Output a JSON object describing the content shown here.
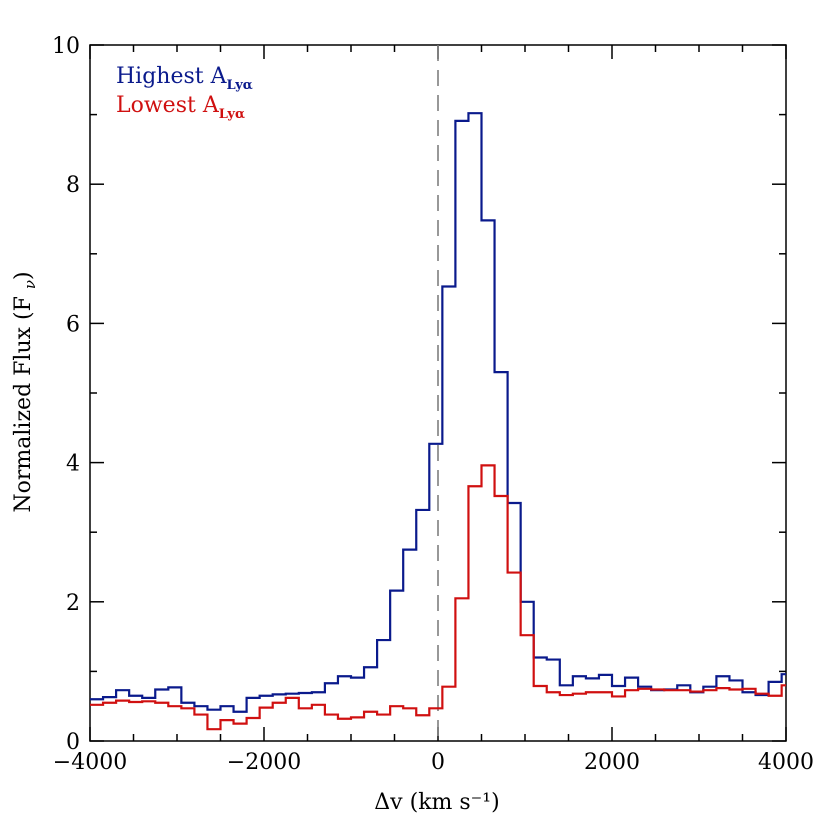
{
  "chart_data": {
    "type": "line",
    "drawstyle": "steps",
    "xlabel": "Δv (km s⁻¹)",
    "ylabel": "Normalized Flux (Fν)",
    "xlim": [
      -4000,
      4000
    ],
    "ylim": [
      0,
      10
    ],
    "x_ticks": [
      -4000,
      -2000,
      0,
      2000,
      4000
    ],
    "x_tick_labels": [
      "−4000",
      "−2000",
      "0",
      "2000",
      "4000"
    ],
    "y_ticks": [
      0,
      2,
      4,
      6,
      8,
      10
    ],
    "y_tick_labels": [
      "0",
      "2",
      "4",
      "6",
      "8",
      "10"
    ],
    "x_minor_step": 500,
    "y_minor_step": 1,
    "vline": {
      "x": 0,
      "style": "dashed",
      "color": "#7f7f7f"
    },
    "legend_position": "top-left",
    "series": [
      {
        "name": "Highest A_Lyα",
        "legend_main": "Highest A",
        "legend_sub": "Lyα",
        "color": "#0a1a8c",
        "x": [
          -4000,
          -3850,
          -3700,
          -3550,
          -3400,
          -3250,
          -3100,
          -2950,
          -2800,
          -2650,
          -2500,
          -2350,
          -2200,
          -2050,
          -1900,
          -1750,
          -1600,
          -1450,
          -1300,
          -1150,
          -1000,
          -850,
          -700,
          -550,
          -400,
          -250,
          -100,
          50,
          200,
          350,
          500,
          650,
          800,
          950,
          1100,
          1250,
          1400,
          1550,
          1700,
          1850,
          2000,
          2150,
          2300,
          2450,
          2600,
          2750,
          2900,
          3050,
          3200,
          3350,
          3500,
          3650,
          3800,
          3950
        ],
        "y": [
          0.6,
          0.63,
          0.73,
          0.65,
          0.62,
          0.74,
          0.77,
          0.55,
          0.5,
          0.45,
          0.5,
          0.42,
          0.62,
          0.65,
          0.67,
          0.68,
          0.69,
          0.7,
          0.83,
          0.93,
          0.91,
          1.06,
          1.45,
          2.16,
          2.75,
          3.32,
          4.27,
          6.53,
          8.91,
          9.02,
          7.48,
          5.3,
          3.42,
          2.0,
          1.2,
          1.17,
          0.8,
          0.93,
          0.9,
          0.95,
          0.79,
          0.91,
          0.78,
          0.73,
          0.74,
          0.8,
          0.7,
          0.78,
          0.93,
          0.87,
          0.7,
          0.66,
          0.85,
          0.96
        ]
      },
      {
        "name": "Lowest A_Lyα",
        "legend_main": "Lowest A",
        "legend_sub": "Lyα",
        "color": "#d01010",
        "x": [
          -4000,
          -3850,
          -3700,
          -3550,
          -3400,
          -3250,
          -3100,
          -2950,
          -2800,
          -2650,
          -2500,
          -2350,
          -2200,
          -2050,
          -1900,
          -1750,
          -1600,
          -1450,
          -1300,
          -1150,
          -1000,
          -850,
          -700,
          -550,
          -400,
          -250,
          -100,
          50,
          200,
          350,
          500,
          650,
          800,
          950,
          1100,
          1250,
          1400,
          1550,
          1700,
          1850,
          2000,
          2150,
          2300,
          2450,
          2600,
          2750,
          2900,
          3050,
          3200,
          3350,
          3500,
          3650,
          3800,
          3950
        ],
        "y": [
          0.52,
          0.55,
          0.58,
          0.56,
          0.57,
          0.55,
          0.5,
          0.47,
          0.38,
          0.17,
          0.3,
          0.25,
          0.33,
          0.48,
          0.55,
          0.62,
          0.47,
          0.52,
          0.38,
          0.32,
          0.34,
          0.42,
          0.38,
          0.5,
          0.47,
          0.37,
          0.47,
          0.78,
          2.05,
          3.66,
          3.96,
          3.52,
          2.42,
          1.52,
          0.79,
          0.7,
          0.66,
          0.68,
          0.7,
          0.7,
          0.64,
          0.73,
          0.75,
          0.74,
          0.73,
          0.73,
          0.71,
          0.73,
          0.76,
          0.74,
          0.75,
          0.68,
          0.65,
          0.8
        ]
      }
    ]
  }
}
